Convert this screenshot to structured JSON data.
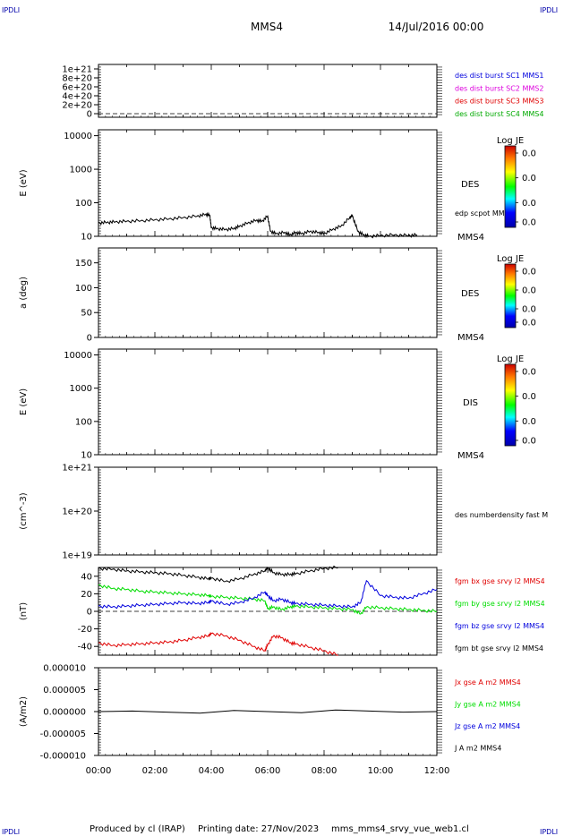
{
  "header": {
    "corner_tl": "IPDLI",
    "corner_tr": "IPDLI",
    "corner_bl": "IPDLI",
    "corner_br": "IPDLI",
    "spacecraft": "MMS4",
    "datetime": "14/Jul/2016 00:00"
  },
  "footer": {
    "produced_by": "Produced by cl (IRAP)",
    "printing_date": "Printing date: 27/Nov/2023",
    "filename": "mms_mms4_srvy_vue_web1.cl"
  },
  "x_axis": {
    "ticks": [
      "00:00",
      "02:00",
      "04:00",
      "06:00",
      "08:00",
      "10:00",
      "12:00"
    ],
    "range_hours": [
      0,
      12
    ]
  },
  "colors": {
    "black": "#000000",
    "red": "#e00000",
    "green": "#00dd00",
    "blue": "#0000dd",
    "magenta": "#dd00dd",
    "label_blue": "#0000cc"
  },
  "chart_data": [
    {
      "type": "line",
      "panel": "burst",
      "yticks": [
        "1e+21",
        "8e+20",
        "6e+20",
        "4e+20",
        "2e+20",
        "0"
      ],
      "legend": [
        {
          "name": "des dist burst SC1 MMS1",
          "color": "#0000dd"
        },
        {
          "name": "des dist burst SC2 MMS2",
          "color": "#dd00dd"
        },
        {
          "name": "des dist burst SC3 MMS3",
          "color": "#e00000"
        },
        {
          "name": "des dist burst SC4 MMS4",
          "color": "#00aa00"
        }
      ],
      "zero_line": "dashed"
    },
    {
      "type": "heatmap",
      "panel": "des_energy",
      "ylabel": "E (eV)",
      "yscale": "log",
      "yticks": [
        "10000",
        "1000",
        "100",
        "10"
      ],
      "ylim": [
        10,
        15000
      ],
      "label": "DES",
      "sublabel": "edp scpot MMS4",
      "bottom_label": "MMS4",
      "colorbar": {
        "title": "Log JE",
        "ticks": [
          "0.0",
          "0.0",
          "0.0",
          "0.0"
        ]
      },
      "series": [
        {
          "name": "edp scpot MMS4",
          "color": "#000000",
          "x": [
            0,
            0.3,
            0.6,
            1.0,
            1.5,
            2.0,
            2.5,
            3.0,
            3.5,
            3.8,
            3.95,
            4.0,
            4.2,
            4.5,
            4.8,
            5.0,
            5.3,
            5.6,
            5.8,
            6.0,
            6.1,
            6.3,
            6.6,
            6.8,
            7.0,
            7.2,
            7.5,
            7.8,
            8.0,
            8.3,
            8.6,
            8.9,
            9.0,
            9.2,
            9.4,
            9.6,
            10.0,
            10.5,
            11.0,
            11.3
          ],
          "y": [
            25,
            26,
            27,
            28,
            29,
            31,
            33,
            36,
            40,
            45,
            42,
            18,
            17,
            16,
            17,
            20,
            25,
            30,
            28,
            40,
            14,
            12,
            13,
            11,
            13,
            12,
            14,
            13,
            12,
            16,
            20,
            35,
            42,
            14,
            11,
            10,
            10.5,
            11,
            10.5,
            11
          ]
        }
      ]
    },
    {
      "type": "heatmap",
      "panel": "des_pitch",
      "ylabel": "a (deg)",
      "yticks": [
        "150",
        "100",
        "50",
        "0"
      ],
      "ylim": [
        0,
        180
      ],
      "label": "DES",
      "bottom_label": "MMS4",
      "colorbar": {
        "title": "Log JE",
        "ticks": [
          "0.0",
          "0.0",
          "0.0",
          "0.0"
        ]
      }
    },
    {
      "type": "heatmap",
      "panel": "dis_energy",
      "ylabel": "E (eV)",
      "yscale": "log",
      "yticks": [
        "10000",
        "1000",
        "100",
        "10"
      ],
      "ylim": [
        10,
        15000
      ],
      "label": "DIS",
      "bottom_label": "MMS4",
      "colorbar": {
        "title": "Log JE",
        "ticks": [
          "0.0",
          "0.0",
          "0.0",
          "0.0"
        ]
      }
    },
    {
      "type": "line",
      "panel": "density",
      "ylabel": "(cm^-3)",
      "yscale": "log",
      "yticks": [
        "1e+21",
        "1e+20",
        "1e+19"
      ],
      "ylim": [
        1e+19,
        1e+21
      ],
      "legend": [
        {
          "name": "des numberdensity fast M",
          "color": "#000000"
        }
      ]
    },
    {
      "type": "line",
      "panel": "fgm",
      "ylabel": "(nT)",
      "yticks": [
        "40",
        "20",
        "0",
        "-20",
        "-40"
      ],
      "ylim": [
        -50,
        50
      ],
      "x": [
        0,
        0.5,
        1.0,
        1.5,
        2.0,
        2.5,
        3.0,
        3.5,
        3.9,
        4.0,
        4.5,
        5.0,
        5.5,
        5.9,
        6.0,
        6.2,
        6.5,
        6.8,
        7.0,
        7.5,
        8.0,
        8.5,
        9.0,
        9.3,
        9.5,
        10.0,
        10.5,
        11.0,
        11.5,
        12.0
      ],
      "series": [
        {
          "name": "fgm bx gse srvy l2 MMS4",
          "color": "#e00000",
          "values": [
            -36,
            -39,
            -38,
            -37,
            -36,
            -35,
            -33,
            -30,
            -28,
            -25,
            -28,
            -33,
            -40,
            -45,
            -38,
            -28,
            -30,
            -36,
            -37,
            -41,
            -45,
            -52,
            null,
            -42,
            null,
            null,
            null,
            null,
            null,
            null
          ]
        },
        {
          "name": "fgm by gse srvy l2 MMS4",
          "color": "#00dd00",
          "values": [
            30,
            26,
            25,
            23,
            22,
            21,
            20,
            19,
            18,
            17,
            16,
            15,
            14,
            12,
            3,
            5,
            2,
            5,
            6,
            5,
            4,
            3,
            2,
            -3,
            5,
            4,
            3,
            2,
            1,
            0
          ]
        },
        {
          "name": "fgm bz gse srvy l2 MMS4",
          "color": "#0000dd",
          "values": [
            6,
            5,
            6,
            7,
            8,
            9,
            10,
            9,
            10,
            12,
            8,
            10,
            15,
            22,
            18,
            12,
            14,
            10,
            9,
            8,
            7,
            6,
            5,
            10,
            35,
            18,
            16,
            15,
            20,
            25
          ]
        },
        {
          "name": "fgm bt gse srvy l2 MMS4",
          "color": "#000000",
          "values": [
            49,
            48,
            46,
            45,
            44,
            43,
            41,
            39,
            37,
            38,
            34,
            37,
            42,
            46,
            50,
            44,
            42,
            42,
            43,
            46,
            49,
            50,
            null,
            null,
            null,
            null,
            null,
            null,
            null,
            null
          ]
        }
      ],
      "zero_line": "dashed"
    },
    {
      "type": "line",
      "panel": "current",
      "ylabel": "(A/m2)",
      "yticks": [
        "0.000010",
        "0.000005",
        "0.000000",
        "-0.000005",
        "-0.000010"
      ],
      "ylim": [
        -1e-05,
        1e-05
      ],
      "legend": [
        {
          "name": "Jx gse A m2 MMS4",
          "color": "#e00000"
        },
        {
          "name": "Jy gse A m2 MMS4",
          "color": "#00dd00"
        },
        {
          "name": "Jz gse A m2 MMS4",
          "color": "#0000dd"
        },
        {
          "name": "J A m2 MMS4",
          "color": "#000000"
        }
      ],
      "series": [
        {
          "name": "J A m2 MMS4",
          "color": "#000000",
          "x": [
            0,
            12
          ],
          "y": [
            0,
            0
          ]
        }
      ]
    }
  ]
}
